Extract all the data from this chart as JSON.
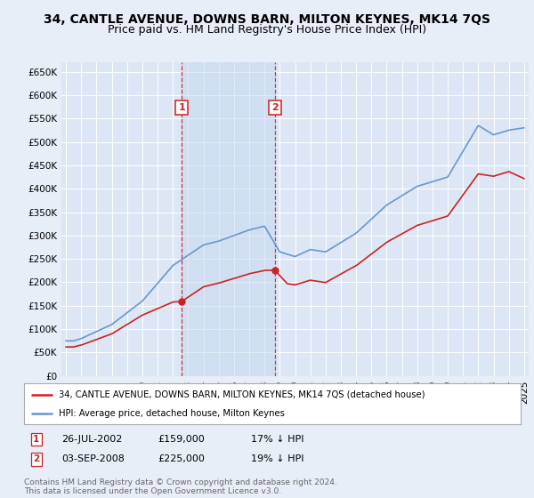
{
  "title": "34, CANTLE AVENUE, DOWNS BARN, MILTON KEYNES, MK14 7QS",
  "subtitle": "Price paid vs. HM Land Registry's House Price Index (HPI)",
  "ylim": [
    0,
    670000
  ],
  "yticks": [
    0,
    50000,
    100000,
    150000,
    200000,
    250000,
    300000,
    350000,
    400000,
    450000,
    500000,
    550000,
    600000,
    650000
  ],
  "ytick_labels": [
    "£0",
    "£50K",
    "£100K",
    "£150K",
    "£200K",
    "£250K",
    "£300K",
    "£350K",
    "£400K",
    "£450K",
    "£500K",
    "£550K",
    "£600K",
    "£650K"
  ],
  "background_color": "#e8eef8",
  "plot_bg_color": "#dce6f5",
  "grid_color": "#ffffff",
  "sale1_x": 2002.577,
  "sale1_price": 159000,
  "sale2_x": 2008.672,
  "sale2_price": 225000,
  "legend_line1": "34, CANTLE AVENUE, DOWNS BARN, MILTON KEYNES, MK14 7QS (detached house)",
  "legend_line2": "HPI: Average price, detached house, Milton Keynes",
  "footer": "Contains HM Land Registry data © Crown copyright and database right 2024.\nThis data is licensed under the Open Government Licence v3.0.",
  "hpi_color": "#6699cc",
  "price_color": "#cc2222",
  "vline_color": "#cc2222",
  "title_fontsize": 10,
  "subtitle_fontsize": 9,
  "tick_fontsize": 7.5,
  "x_start_year": 1995,
  "x_end_year": 2025
}
